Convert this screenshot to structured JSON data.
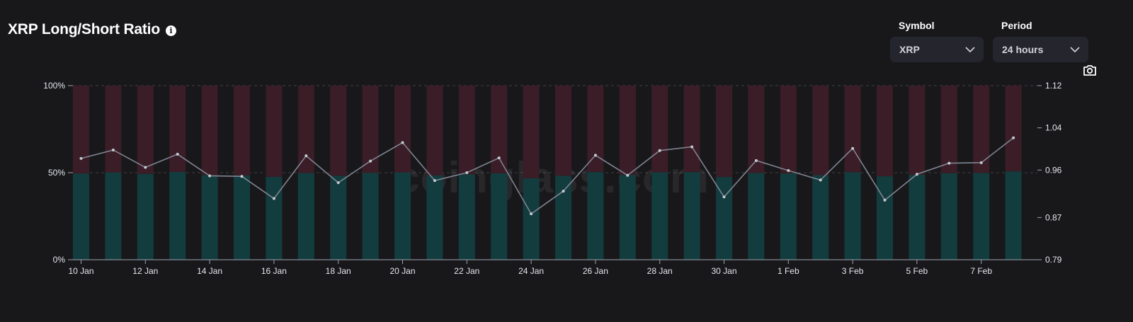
{
  "header": {
    "title": "XRP Long/Short Ratio",
    "info_icon": "info-icon"
  },
  "controls": {
    "symbol": {
      "label": "Symbol",
      "value": "XRP"
    },
    "period": {
      "label": "Period",
      "value": "24 hours"
    },
    "screenshot_icon": "camera-icon"
  },
  "watermark": "coinglass.com",
  "colors": {
    "background": "#18181b",
    "long": "#133c3e",
    "short": "#3a1d26",
    "line": "#7f8491",
    "grid": "#3f3f46"
  },
  "chart_data": {
    "type": "bar",
    "stacked": true,
    "categories": [
      "10 Jan",
      "11 Jan",
      "12 Jan",
      "13 Jan",
      "14 Jan",
      "15 Jan",
      "16 Jan",
      "17 Jan",
      "18 Jan",
      "19 Jan",
      "20 Jan",
      "21 Jan",
      "22 Jan",
      "23 Jan",
      "24 Jan",
      "25 Jan",
      "26 Jan",
      "27 Jan",
      "28 Jan",
      "29 Jan",
      "30 Jan",
      "31 Jan",
      "1 Feb",
      "2 Feb",
      "3 Feb",
      "4 Feb",
      "5 Feb",
      "6 Feb",
      "7 Feb",
      "8 Feb"
    ],
    "x_tick_labels": [
      "10 Jan",
      "12 Jan",
      "14 Jan",
      "16 Jan",
      "18 Jan",
      "20 Jan",
      "22 Jan",
      "24 Jan",
      "26 Jan",
      "28 Jan",
      "30 Jan",
      "1 Feb",
      "3 Feb",
      "5 Feb",
      "7 Feb"
    ],
    "series": [
      {
        "values": [
          49.5,
          50.1,
          49.3,
          50.4,
          48.5,
          48.4,
          47.6,
          49.8,
          48.2,
          49.9,
          50.1,
          48.4,
          49.0,
          49.6,
          46.8,
          48.2,
          50.3,
          48.7,
          50.2,
          50.3,
          47.5,
          49.8,
          49.6,
          48.6,
          50.2,
          47.9,
          48.8,
          49.7,
          49.8,
          50.7
        ]
      },
      {
        "values": [
          50.5,
          49.9,
          50.7,
          49.6,
          51.5,
          51.6,
          52.4,
          50.2,
          51.8,
          50.1,
          49.9,
          51.6,
          51.0,
          50.4,
          53.2,
          51.8,
          49.7,
          51.3,
          49.8,
          49.7,
          52.5,
          50.2,
          50.4,
          51.4,
          49.8,
          52.1,
          51.2,
          50.3,
          50.2,
          49.3
        ]
      },
      {
        "axis": "right",
        "type": "line",
        "values": [
          0.982,
          0.998,
          0.965,
          0.99,
          0.949,
          0.948,
          0.906,
          0.987,
          0.936,
          0.977,
          1.012,
          0.94,
          0.955,
          0.983,
          0.877,
          0.92,
          0.988,
          0.95,
          0.997,
          1.004,
          0.909,
          0.978,
          0.959,
          0.941,
          1.001,
          0.903,
          0.952,
          0.973,
          0.974,
          1.021
        ]
      }
    ],
    "y_left": {
      "ticks": [
        "0%",
        "50%",
        "100%"
      ],
      "range": [
        0,
        100
      ]
    },
    "y_right": {
      "ticks": [
        "0.79",
        "0.87",
        "0.96",
        "1.04",
        "1.12"
      ],
      "range": [
        0.79,
        1.12
      ]
    },
    "grid": true
  }
}
